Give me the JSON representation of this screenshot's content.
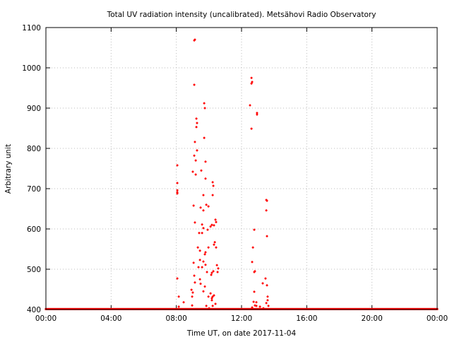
{
  "chart_data": {
    "type": "scatter",
    "title": "Total UV radiation intensity (uncalibrated). Metsähovi Radio Observatory",
    "xlabel": "Time UT, on date 2017-11-04",
    "ylabel": "Arbitrary unit",
    "xlim": [
      0,
      24
    ],
    "ylim": [
      400,
      1100
    ],
    "xticks": [
      0,
      4,
      8,
      12,
      16,
      20,
      24
    ],
    "xtick_labels": [
      "00:00",
      "04:00",
      "08:00",
      "12:00",
      "16:00",
      "20:00",
      "00:00"
    ],
    "yticks": [
      400,
      500,
      600,
      700,
      800,
      900,
      1000,
      1100
    ],
    "ytick_labels": [
      "400",
      "500",
      "600",
      "700",
      "800",
      "900",
      "1000",
      "1100"
    ],
    "grid": true,
    "color": "#ff0000",
    "baseline": {
      "value": 401,
      "from": 0,
      "to": 24,
      "step": 0.05
    },
    "points": [
      [
        8.06,
        758
      ],
      [
        8.06,
        714
      ],
      [
        8.06,
        696
      ],
      [
        8.06,
        691
      ],
      [
        8.06,
        688
      ],
      [
        8.06,
        477
      ],
      [
        8.15,
        432
      ],
      [
        8.15,
        407
      ],
      [
        8.45,
        418
      ],
      [
        9.1,
        1068
      ],
      [
        9.14,
        1070
      ],
      [
        9.1,
        958
      ],
      [
        9.23,
        874
      ],
      [
        9.27,
        863
      ],
      [
        9.23,
        853
      ],
      [
        9.71,
        912
      ],
      [
        9.75,
        900
      ],
      [
        9.71,
        826
      ],
      [
        9.14,
        816
      ],
      [
        9.1,
        782
      ],
      [
        9.27,
        795
      ],
      [
        9.19,
        770
      ],
      [
        9.79,
        767
      ],
      [
        9.01,
        742
      ],
      [
        9.19,
        735
      ],
      [
        9.53,
        745
      ],
      [
        9.79,
        725
      ],
      [
        10.23,
        716
      ],
      [
        10.27,
        707
      ],
      [
        10.23,
        684
      ],
      [
        9.66,
        684
      ],
      [
        9.06,
        658
      ],
      [
        9.49,
        653
      ],
      [
        9.84,
        660
      ],
      [
        9.66,
        646
      ],
      [
        9.97,
        656
      ],
      [
        10.4,
        623
      ],
      [
        10.44,
        617
      ],
      [
        10.31,
        609
      ],
      [
        10.18,
        610
      ],
      [
        9.14,
        616
      ],
      [
        9.58,
        611
      ],
      [
        9.66,
        602
      ],
      [
        9.4,
        590
      ],
      [
        9.58,
        590
      ],
      [
        9.92,
        598
      ],
      [
        10.1,
        606
      ],
      [
        10.31,
        561
      ],
      [
        9.97,
        554
      ],
      [
        9.32,
        554
      ],
      [
        9.45,
        546
      ],
      [
        9.79,
        542
      ],
      [
        9.75,
        537
      ],
      [
        10.44,
        554
      ],
      [
        10.36,
        567
      ],
      [
        9.45,
        523
      ],
      [
        9.79,
        511
      ],
      [
        9.36,
        505
      ],
      [
        9.58,
        505
      ],
      [
        9.66,
        519
      ],
      [
        10.49,
        510
      ],
      [
        9.06,
        516
      ],
      [
        9.1,
        484
      ],
      [
        10.53,
        493
      ],
      [
        10.57,
        502
      ],
      [
        10.14,
        486
      ],
      [
        10.27,
        495
      ],
      [
        9.14,
        467
      ],
      [
        8.93,
        449
      ],
      [
        9.01,
        442
      ],
      [
        9.49,
        464
      ],
      [
        9.75,
        457
      ],
      [
        9.88,
        493
      ],
      [
        10.18,
        491
      ],
      [
        9.45,
        475
      ],
      [
        9.66,
        445
      ],
      [
        9.97,
        432
      ],
      [
        10.18,
        428
      ],
      [
        10.4,
        414
      ],
      [
        10.31,
        435
      ],
      [
        10.1,
        440
      ],
      [
        10.18,
        423
      ],
      [
        8.97,
        432
      ],
      [
        8.97,
        410
      ],
      [
        9.84,
        409
      ],
      [
        10.01,
        403
      ],
      [
        10.23,
        409
      ],
      [
        10.23,
        432
      ],
      [
        12.61,
        975
      ],
      [
        12.61,
        961
      ],
      [
        12.65,
        965
      ],
      [
        12.52,
        907
      ],
      [
        12.95,
        888
      ],
      [
        12.95,
        884
      ],
      [
        12.61,
        849
      ],
      [
        13.52,
        672
      ],
      [
        13.56,
        670
      ],
      [
        13.52,
        646
      ],
      [
        12.78,
        598
      ],
      [
        13.56,
        582
      ],
      [
        12.7,
        554
      ],
      [
        12.65,
        518
      ],
      [
        12.78,
        493
      ],
      [
        12.82,
        495
      ],
      [
        13.47,
        477
      ],
      [
        13.3,
        465
      ],
      [
        13.56,
        460
      ],
      [
        12.78,
        444
      ],
      [
        13.6,
        432
      ],
      [
        12.74,
        419
      ],
      [
        12.91,
        418
      ],
      [
        12.82,
        410
      ],
      [
        13.13,
        407
      ],
      [
        13.34,
        403
      ],
      [
        13.52,
        416
      ],
      [
        13.6,
        423
      ],
      [
        12.65,
        405
      ],
      [
        12.91,
        409
      ],
      [
        13.65,
        409
      ]
    ]
  }
}
